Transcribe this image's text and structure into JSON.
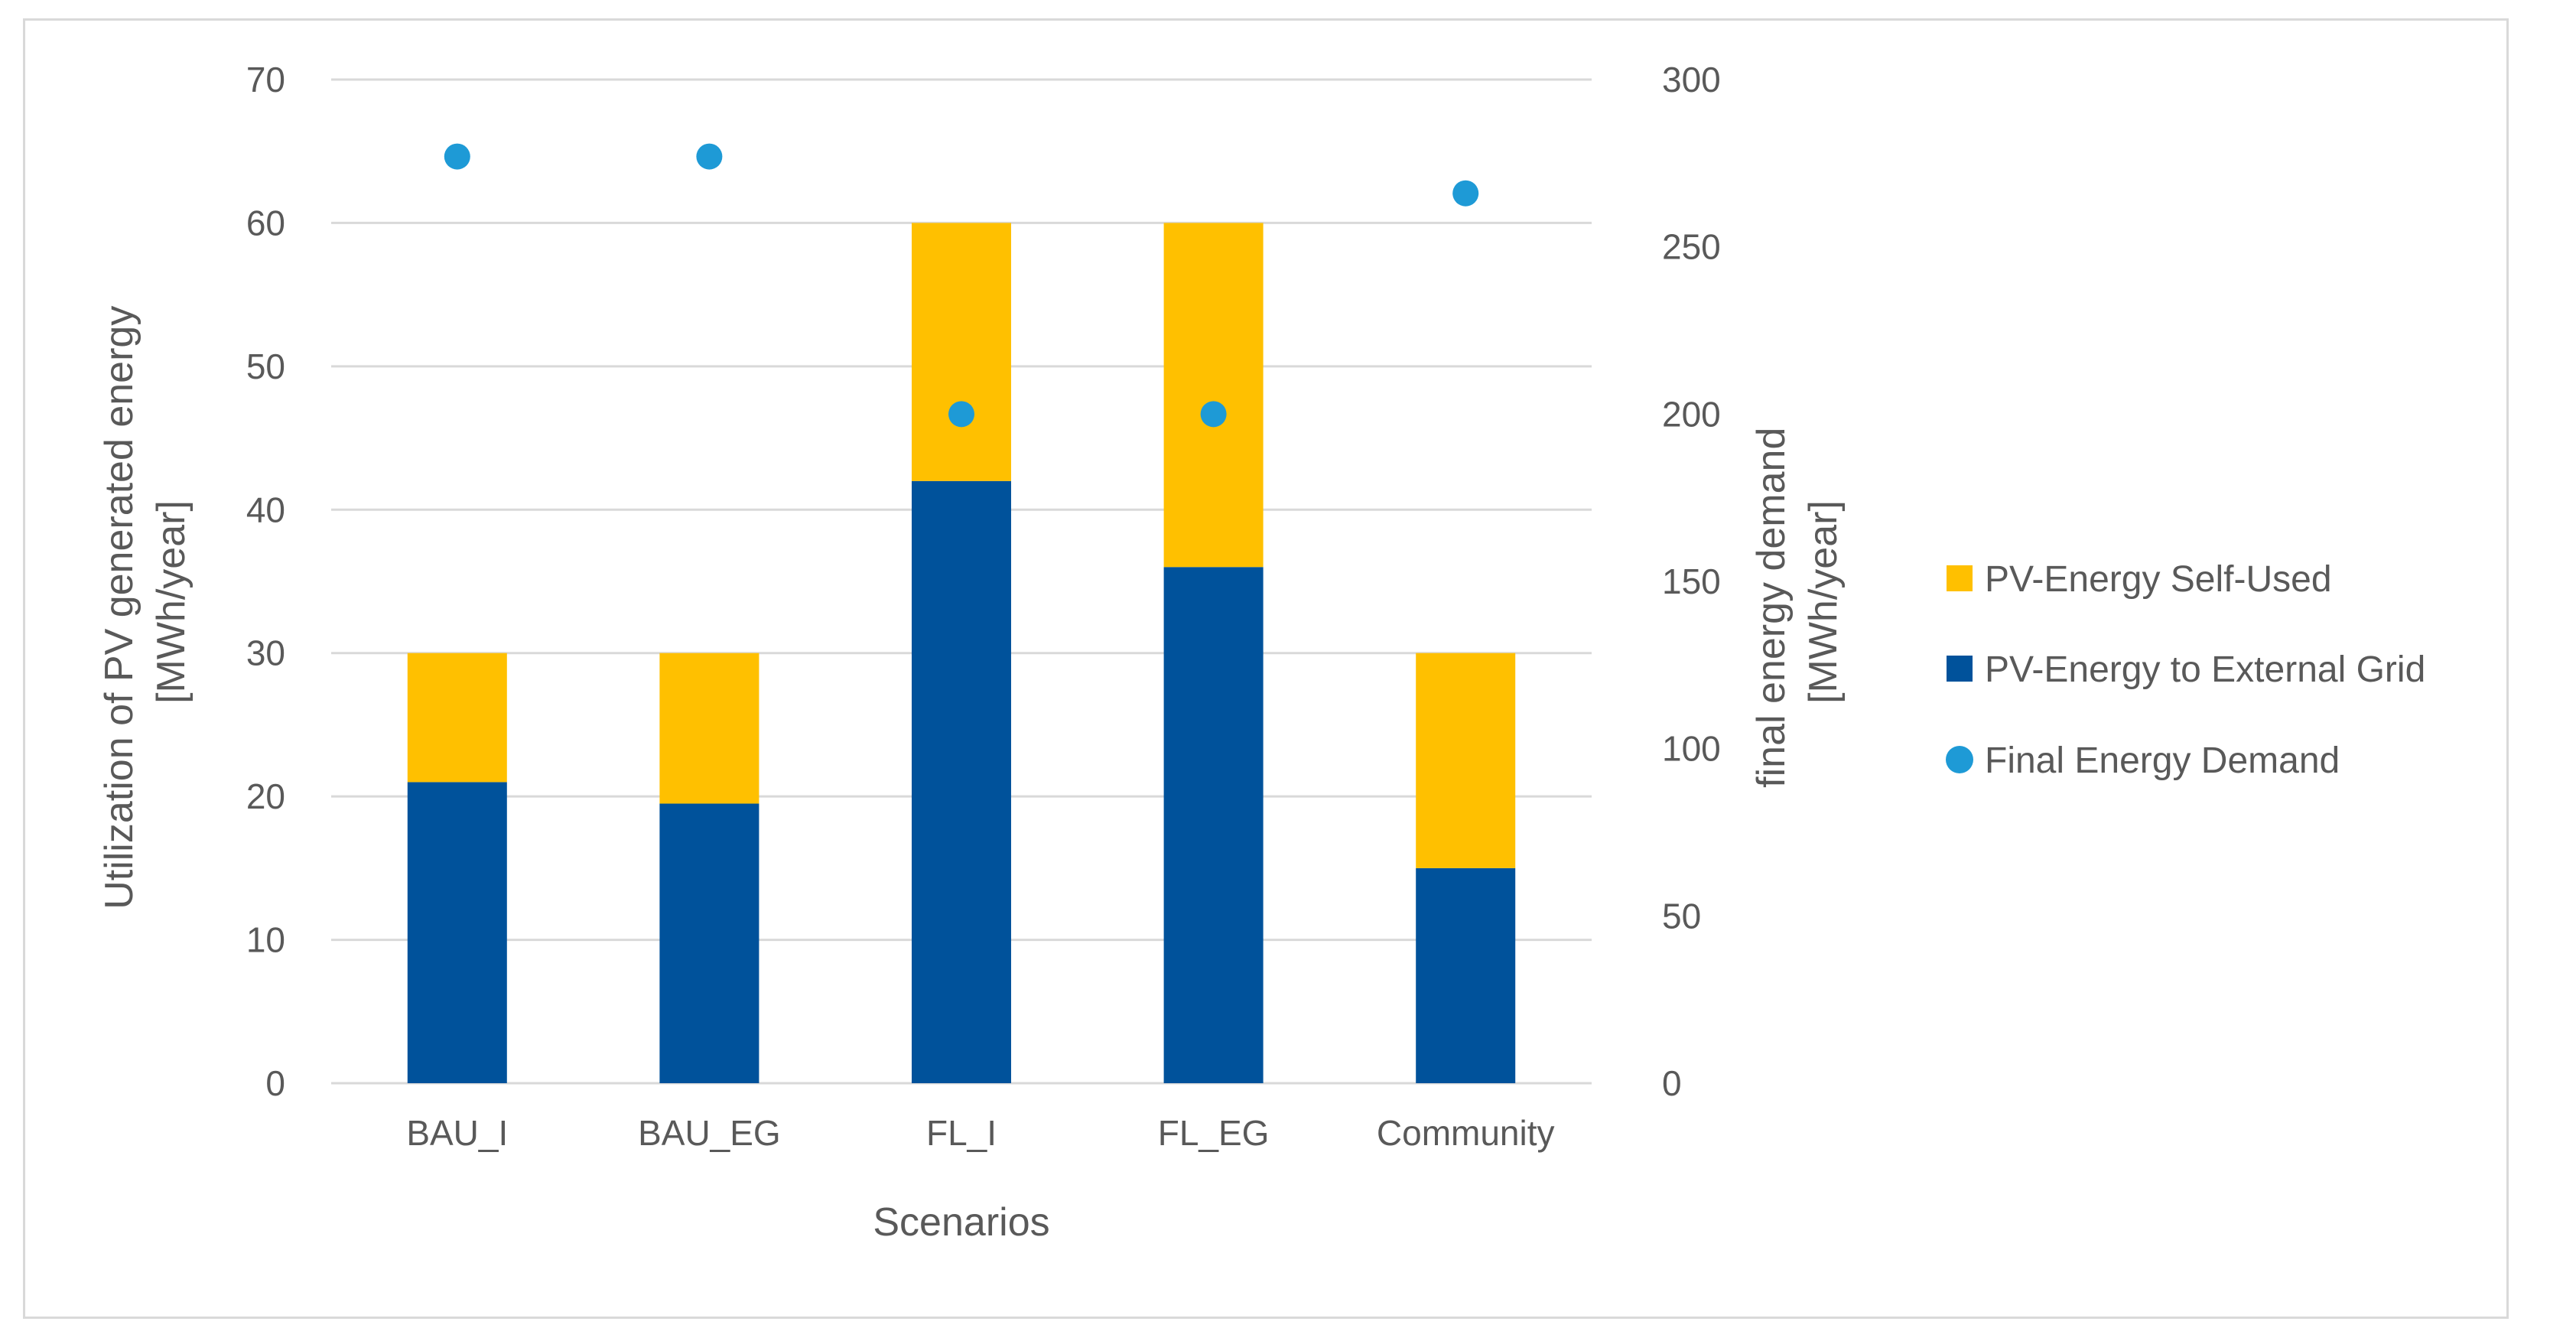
{
  "chart_data": {
    "type": "bar",
    "stacked": true,
    "categories": [
      "BAU_I",
      "BAU_EG",
      "FL_I",
      "FL_EG",
      "Community"
    ],
    "series": [
      {
        "name": "PV-Energy to External Grid",
        "axis": "left",
        "kind": "bar",
        "color": "#00529b",
        "values": [
          21,
          19.5,
          42,
          36,
          15
        ]
      },
      {
        "name": "PV-Energy Self-Used",
        "axis": "left",
        "kind": "bar",
        "color": "#ffc000",
        "values": [
          9,
          10.5,
          18,
          24,
          15
        ]
      },
      {
        "name": "Final Energy Demand",
        "axis": "right",
        "kind": "scatter",
        "color": "#1e9ad6",
        "values": [
          277,
          277,
          200,
          200,
          266
        ]
      }
    ],
    "xlabel": "Scenarios",
    "ylabel": "Utilization of PV generated energy [MWh/year]",
    "ylabel_lines": [
      "Utilization of PV generated energy",
      "[MWh/year]"
    ],
    "y2label": "final energy demand [MWh/year]",
    "y2label_lines": [
      "final energy demand",
      "[MWh/year]"
    ],
    "ylim": [
      0,
      70
    ],
    "yticks": [
      "0",
      "10",
      "20",
      "30",
      "40",
      "50",
      "60",
      "70"
    ],
    "y2lim": [
      0,
      300
    ],
    "y2ticks": [
      "0",
      "50",
      "100",
      "150",
      "200",
      "250",
      "300"
    ],
    "legend_order": [
      "PV-Energy Self-Used",
      "PV-Energy to External Grid",
      "Final Energy Demand"
    ],
    "legend_position": "right",
    "grid": true
  }
}
